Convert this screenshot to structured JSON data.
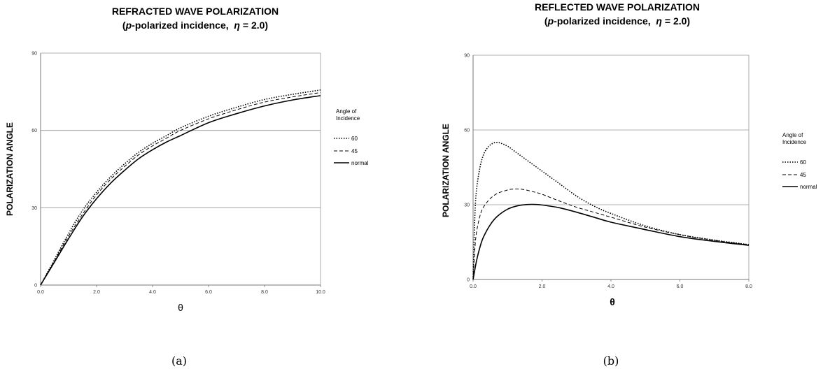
{
  "chart_data": [
    {
      "type": "line",
      "panel_label": "(a)",
      "title_line1": "REFRACTED WAVE POLARIZATION",
      "title_line2_pre": "(",
      "title_line2_p": "p",
      "title_line2_mid": "-polarized incidence,  ",
      "title_line2_eta": "η",
      "title_line2_post": " = 2.0)",
      "xlabel": "θ",
      "ylabel": "POLARIZATION ANGLE",
      "xlim": [
        0,
        10
      ],
      "ylim": [
        0,
        90
      ],
      "xticks": [
        "0.0",
        "2.0",
        "4.0",
        "6.0",
        "8.0",
        "10.0"
      ],
      "yticks": [
        "0",
        "30",
        "60",
        "90"
      ],
      "grid": true,
      "legend_title": [
        "Angle of",
        "Incidence"
      ],
      "legend_position": "right",
      "series": [
        {
          "name": "60",
          "style": "dotted",
          "x": [
            0,
            0.5,
            1,
            1.5,
            2,
            2.5,
            3,
            3.5,
            4,
            4.5,
            5,
            6,
            7,
            8,
            9,
            10
          ],
          "y": [
            0,
            10,
            20,
            29,
            36,
            42,
            47,
            51.5,
            55,
            58,
            61,
            65.5,
            69,
            72,
            74,
            75.7
          ]
        },
        {
          "name": "45",
          "style": "dashed",
          "x": [
            0,
            0.5,
            1,
            1.5,
            2,
            2.5,
            3,
            3.5,
            4,
            4.5,
            5,
            6,
            7,
            8,
            9,
            10
          ],
          "y": [
            0,
            9.5,
            19,
            27.5,
            35,
            41,
            46,
            50.5,
            54,
            57,
            60,
            64.5,
            68,
            71,
            73,
            74.7
          ]
        },
        {
          "name": "normal",
          "style": "solid",
          "x": [
            0,
            0.5,
            1,
            1.5,
            2,
            2.5,
            3,
            3.5,
            4,
            4.5,
            5,
            6,
            7,
            8,
            9,
            10
          ],
          "y": [
            0,
            9,
            18,
            26.5,
            33.5,
            39.5,
            44.5,
            49,
            52.5,
            55.5,
            58,
            63,
            66.5,
            69.5,
            71.8,
            73.5
          ]
        }
      ]
    },
    {
      "type": "line",
      "panel_label": "(b)",
      "title_line1": "REFLECTED WAVE POLARIZATION",
      "title_line2_pre": "(",
      "title_line2_p": "p",
      "title_line2_mid": "-polarized incidence,  ",
      "title_line2_eta": "η",
      "title_line2_post": " = 2.0)",
      "xlabel": "θ",
      "ylabel": "POLARIZATION ANGLE",
      "xlim": [
        0,
        8
      ],
      "ylim": [
        0,
        90
      ],
      "xticks": [
        "0.0",
        "2.0",
        "4.0",
        "6.0",
        "8.0"
      ],
      "yticks": [
        "0",
        "30",
        "60",
        "90"
      ],
      "grid": true,
      "legend_title": [
        "Angle of",
        "Incidence"
      ],
      "legend_position": "right",
      "series": [
        {
          "name": "60",
          "style": "dotted",
          "x": [
            0,
            0.05,
            0.1,
            0.2,
            0.3,
            0.4,
            0.5,
            0.6,
            0.7,
            0.8,
            1.0,
            1.2,
            1.5,
            2,
            2.5,
            3,
            3.5,
            4,
            5,
            6,
            7,
            8
          ],
          "y": [
            0,
            25,
            36,
            45,
            50,
            52.5,
            54,
            54.8,
            55,
            54.7,
            53.5,
            51.5,
            48.5,
            43.5,
            38.5,
            33.5,
            29.5,
            26.5,
            21.5,
            18,
            15.8,
            14
          ]
        },
        {
          "name": "45",
          "style": "dashed",
          "x": [
            0,
            0.05,
            0.1,
            0.2,
            0.3,
            0.5,
            0.7,
            0.9,
            1.1,
            1.3,
            1.5,
            1.8,
            2,
            2.5,
            3,
            3.5,
            4,
            5,
            6,
            7,
            8
          ],
          "y": [
            0,
            12,
            19,
            25.5,
            29,
            32.5,
            34.5,
            35.5,
            36.2,
            36.3,
            36,
            35,
            34.2,
            31.5,
            29,
            27,
            25,
            21,
            18,
            15.7,
            13.9
          ]
        },
        {
          "name": "normal",
          "style": "solid",
          "x": [
            0,
            0.1,
            0.2,
            0.3,
            0.5,
            0.7,
            1.0,
            1.3,
            1.6,
            1.8,
            2,
            2.5,
            3,
            3.5,
            4,
            5,
            6,
            7,
            8
          ],
          "y": [
            0,
            7.5,
            13,
            17,
            22,
            25.3,
            28.2,
            29.6,
            30.1,
            30.1,
            29.9,
            28.8,
            27,
            25,
            23,
            20,
            17.2,
            15.3,
            13.7
          ]
        }
      ]
    }
  ]
}
